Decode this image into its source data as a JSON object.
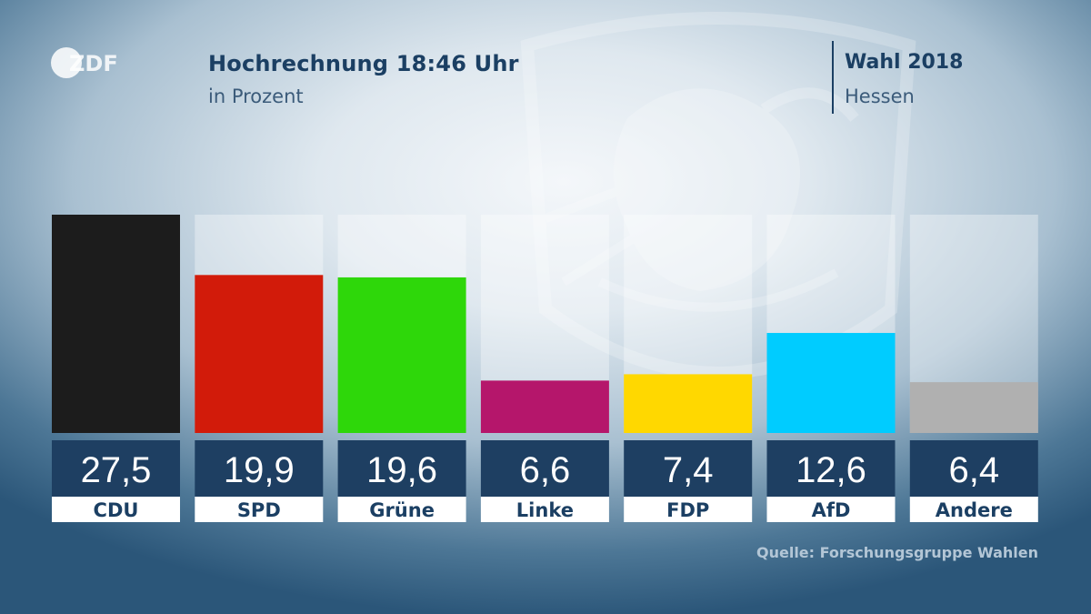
{
  "header": {
    "title": "Hochrechnung 18:46 Uhr",
    "subtitle": "in Prozent",
    "election": "Wahl 2018",
    "region": "Hessen",
    "logo_text": "ZDF"
  },
  "source": "Quelle: Forschungsgruppe Wahlen",
  "chart_data": {
    "type": "bar",
    "categories": [
      "CDU",
      "SPD",
      "Grüne",
      "Linke",
      "FDP",
      "AfD",
      "Andere"
    ],
    "values": [
      27.5,
      19.9,
      19.6,
      6.6,
      7.4,
      12.6,
      6.4
    ],
    "value_labels": [
      "27,5",
      "19,9",
      "19,6",
      "6,6",
      "7,4",
      "12,6",
      "6,4"
    ],
    "colors": [
      "#1c1c1c",
      "#d21b0a",
      "#2ed70a",
      "#b5166b",
      "#ffd800",
      "#00ccff",
      "#b0b0b0"
    ],
    "ylim": [
      0,
      27.5
    ],
    "grid": false,
    "legend": "none"
  }
}
